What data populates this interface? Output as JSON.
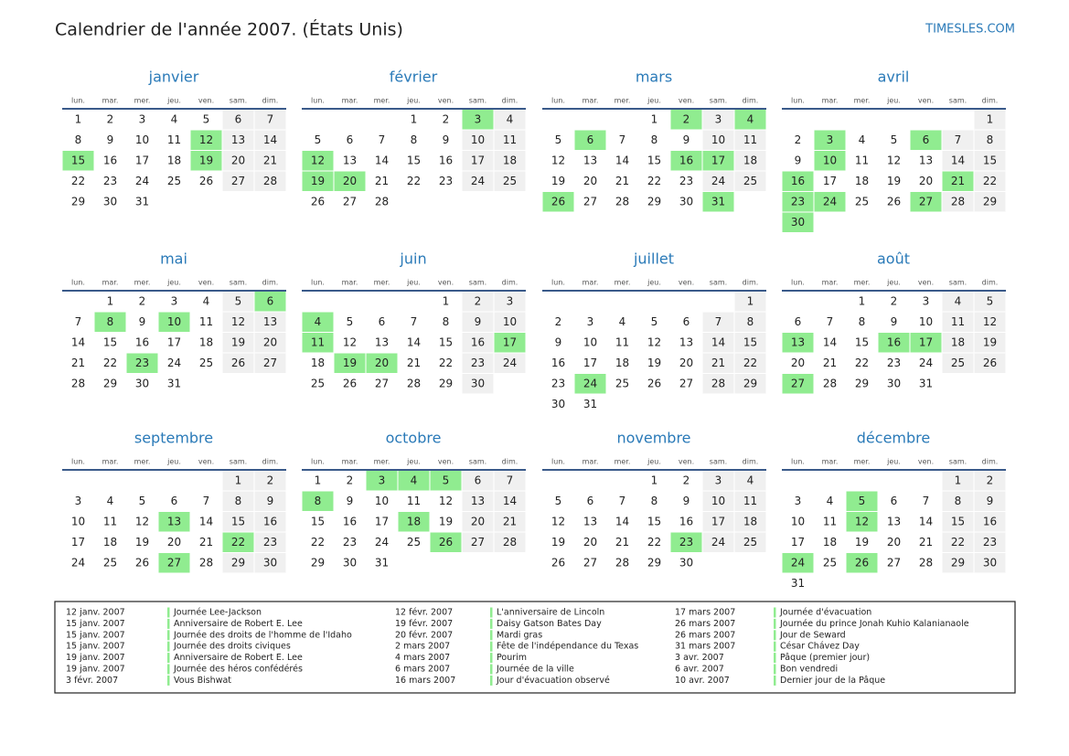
{
  "header": {
    "title": "Calendrier de l'année 2007. (États Unis)",
    "site": "TIMESLES.COM"
  },
  "weekdays": [
    "lun.",
    "mar.",
    "mer.",
    "jeu.",
    "ven.",
    "sam.",
    "dim."
  ],
  "months": [
    {
      "name": "janvier",
      "weeks": [
        [
          1,
          2,
          3,
          4,
          5,
          6,
          7
        ],
        [
          8,
          9,
          10,
          11,
          12,
          13,
          14
        ],
        [
          15,
          16,
          17,
          18,
          19,
          20,
          21
        ],
        [
          22,
          23,
          24,
          25,
          26,
          27,
          28
        ],
        [
          29,
          30,
          31,
          null,
          null,
          null,
          null
        ]
      ],
      "highlighted_days": [
        12,
        15,
        19
      ]
    },
    {
      "name": "février",
      "weeks": [
        [
          null,
          null,
          null,
          1,
          2,
          3,
          4
        ],
        [
          5,
          6,
          7,
          8,
          9,
          10,
          11
        ],
        [
          12,
          13,
          14,
          15,
          16,
          17,
          18
        ],
        [
          19,
          20,
          21,
          22,
          23,
          24,
          25
        ],
        [
          26,
          27,
          28,
          null,
          null,
          null,
          null
        ]
      ],
      "highlighted_days": [
        3,
        12,
        19,
        20
      ]
    },
    {
      "name": "mars",
      "weeks": [
        [
          null,
          null,
          null,
          1,
          2,
          3,
          4
        ],
        [
          5,
          6,
          7,
          8,
          9,
          10,
          11
        ],
        [
          12,
          13,
          14,
          15,
          16,
          17,
          18
        ],
        [
          19,
          20,
          21,
          22,
          23,
          24,
          25
        ],
        [
          26,
          27,
          28,
          29,
          30,
          31,
          null
        ]
      ],
      "highlighted_days": [
        2,
        4,
        6,
        16,
        17,
        26,
        31
      ]
    },
    {
      "name": "avril",
      "weeks": [
        [
          null,
          null,
          null,
          null,
          null,
          null,
          1
        ],
        [
          2,
          3,
          4,
          5,
          6,
          7,
          8
        ],
        [
          9,
          10,
          11,
          12,
          13,
          14,
          15
        ],
        [
          16,
          17,
          18,
          19,
          20,
          21,
          22
        ],
        [
          23,
          24,
          25,
          26,
          27,
          28,
          29
        ],
        [
          30,
          null,
          null,
          null,
          null,
          null,
          null
        ]
      ],
      "highlighted_days": [
        3,
        6,
        10,
        16,
        21,
        23,
        24,
        27,
        30
      ]
    },
    {
      "name": "mai",
      "weeks": [
        [
          null,
          1,
          2,
          3,
          4,
          5,
          6
        ],
        [
          7,
          8,
          9,
          10,
          11,
          12,
          13
        ],
        [
          14,
          15,
          16,
          17,
          18,
          19,
          20
        ],
        [
          21,
          22,
          23,
          24,
          25,
          26,
          27
        ],
        [
          28,
          29,
          30,
          31,
          null,
          null,
          null
        ]
      ],
      "highlighted_days": [
        6,
        8,
        10,
        23
      ]
    },
    {
      "name": "juin",
      "weeks": [
        [
          null,
          null,
          null,
          null,
          1,
          2,
          3
        ],
        [
          4,
          5,
          6,
          7,
          8,
          9,
          10
        ],
        [
          11,
          12,
          13,
          14,
          15,
          16,
          17
        ],
        [
          18,
          19,
          20,
          21,
          22,
          23,
          24
        ],
        [
          25,
          26,
          27,
          28,
          29,
          30,
          null
        ]
      ],
      "highlighted_days": [
        4,
        11,
        17,
        19,
        20
      ]
    },
    {
      "name": "juillet",
      "weeks": [
        [
          null,
          null,
          null,
          null,
          null,
          null,
          1
        ],
        [
          2,
          3,
          4,
          5,
          6,
          7,
          8
        ],
        [
          9,
          10,
          11,
          12,
          13,
          14,
          15
        ],
        [
          16,
          17,
          18,
          19,
          20,
          21,
          22
        ],
        [
          23,
          24,
          25,
          26,
          27,
          28,
          29
        ],
        [
          30,
          31,
          null,
          null,
          null,
          null,
          null
        ]
      ],
      "highlighted_days": [
        24
      ]
    },
    {
      "name": "août",
      "weeks": [
        [
          null,
          null,
          1,
          2,
          3,
          4,
          5
        ],
        [
          6,
          7,
          8,
          9,
          10,
          11,
          12
        ],
        [
          13,
          14,
          15,
          16,
          17,
          18,
          19
        ],
        [
          20,
          21,
          22,
          23,
          24,
          25,
          26
        ],
        [
          27,
          28,
          29,
          30,
          31,
          null,
          null
        ]
      ],
      "highlighted_days": [
        13,
        16,
        17,
        27
      ]
    },
    {
      "name": "septembre",
      "weeks": [
        [
          null,
          null,
          null,
          null,
          null,
          1,
          2
        ],
        [
          3,
          4,
          5,
          6,
          7,
          8,
          9
        ],
        [
          10,
          11,
          12,
          13,
          14,
          15,
          16
        ],
        [
          17,
          18,
          19,
          20,
          21,
          22,
          23
        ],
        [
          24,
          25,
          26,
          27,
          28,
          29,
          30
        ]
      ],
      "highlighted_days": [
        13,
        22,
        27
      ]
    },
    {
      "name": "octobre",
      "weeks": [
        [
          1,
          2,
          3,
          4,
          5,
          6,
          7
        ],
        [
          8,
          9,
          10,
          11,
          12,
          13,
          14
        ],
        [
          15,
          16,
          17,
          18,
          19,
          20,
          21
        ],
        [
          22,
          23,
          24,
          25,
          26,
          27,
          28
        ],
        [
          29,
          30,
          31,
          null,
          null,
          null,
          null
        ]
      ],
      "highlighted_days": [
        3,
        4,
        5,
        8,
        18,
        26
      ]
    },
    {
      "name": "novembre",
      "weeks": [
        [
          null,
          null,
          null,
          1,
          2,
          3,
          4
        ],
        [
          5,
          6,
          7,
          8,
          9,
          10,
          11
        ],
        [
          12,
          13,
          14,
          15,
          16,
          17,
          18
        ],
        [
          19,
          20,
          21,
          22,
          23,
          24,
          25
        ],
        [
          26,
          27,
          28,
          29,
          30,
          null,
          null
        ]
      ],
      "highlighted_days": [
        23
      ]
    },
    {
      "name": "décembre",
      "weeks": [
        [
          null,
          null,
          null,
          null,
          null,
          1,
          2
        ],
        [
          3,
          4,
          5,
          6,
          7,
          8,
          9
        ],
        [
          10,
          11,
          12,
          13,
          14,
          15,
          16
        ],
        [
          17,
          18,
          19,
          20,
          21,
          22,
          23
        ],
        [
          24,
          25,
          26,
          27,
          28,
          29,
          30
        ],
        [
          31,
          null,
          null,
          null,
          null,
          null,
          null
        ]
      ],
      "highlighted_days": [
        5,
        12,
        24,
        26
      ]
    }
  ],
  "holidays": [
    {
      "date": "12 janv. 2007",
      "name": "Journée Lee-Jackson"
    },
    {
      "date": "15 janv. 2007",
      "name": "Anniversaire de Robert E. Lee"
    },
    {
      "date": "15 janv. 2007",
      "name": "Journée des droits de l'homme de l'Idaho"
    },
    {
      "date": "15 janv. 2007",
      "name": "Journée des droits civiques"
    },
    {
      "date": "19 janv. 2007",
      "name": "Anniversaire de Robert E. Lee"
    },
    {
      "date": "19 janv. 2007",
      "name": "Journée des héros confédérés"
    },
    {
      "date": "3 févr. 2007",
      "name": "Vous Bishwat"
    },
    {
      "date": "12 févr. 2007",
      "name": "L'anniversaire de Lincoln"
    },
    {
      "date": "19 févr. 2007",
      "name": "Daisy Gatson Bates Day"
    },
    {
      "date": "20 févr. 2007",
      "name": "Mardi gras"
    },
    {
      "date": "2 mars 2007",
      "name": "Fête de l'indépendance du Texas"
    },
    {
      "date": "4 mars 2007",
      "name": "Pourim"
    },
    {
      "date": "6 mars 2007",
      "name": "Journée de la ville"
    },
    {
      "date": "16 mars 2007",
      "name": "Jour d'évacuation observé"
    },
    {
      "date": "17 mars 2007",
      "name": "Journée d'évacuation"
    },
    {
      "date": "26 mars 2007",
      "name": "Journée du prince Jonah Kuhio Kalanianaole"
    },
    {
      "date": "26 mars 2007",
      "name": "Jour de Seward"
    },
    {
      "date": "31 mars 2007",
      "name": "César Chávez Day"
    },
    {
      "date": "3 avr. 2007",
      "name": "Pâque (premier jour)"
    },
    {
      "date": "6 avr. 2007",
      "name": "Bon vendredi"
    },
    {
      "date": "10 avr. 2007",
      "name": "Dernier jour de la Pâque"
    }
  ]
}
